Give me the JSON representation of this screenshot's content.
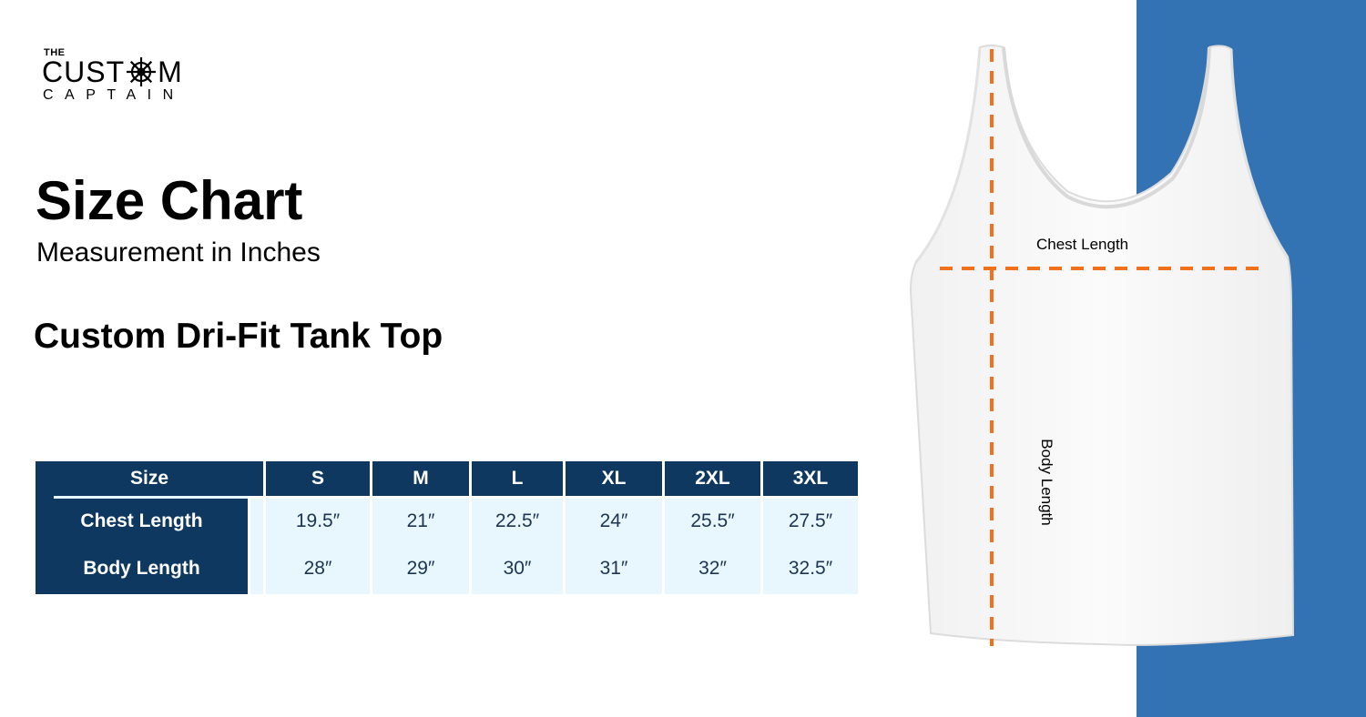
{
  "logo": {
    "line_the": "THE",
    "line_custom_left": "CUST",
    "line_custom_right": "M",
    "line_captain": "CAPTAIN",
    "icon": "ship-wheel-icon"
  },
  "title": "Size Chart",
  "subtitle": "Measurement in Inches",
  "product_name": "Custom Dri-Fit Tank Top",
  "table": {
    "header_label": "Size",
    "sizes": [
      "S",
      "M",
      "L",
      "XL",
      "2XL",
      "3XL"
    ],
    "rows": [
      {
        "label": "Chest Length",
        "values": [
          "19.5″",
          "21″",
          "22.5″",
          "24″",
          "25.5″",
          "27.5″"
        ]
      },
      {
        "label": "Body Length",
        "values": [
          "28″",
          "29″",
          "30″",
          "31″",
          "32″",
          "32.5″"
        ]
      }
    ]
  },
  "diagram": {
    "chest_label": "Chest Length",
    "body_label": "Body Length"
  },
  "colors": {
    "navy": "#0e3860",
    "light_cell": "#e8f6fd",
    "panel_blue": "#3473b3",
    "measure_orange": "#f26f1b"
  }
}
